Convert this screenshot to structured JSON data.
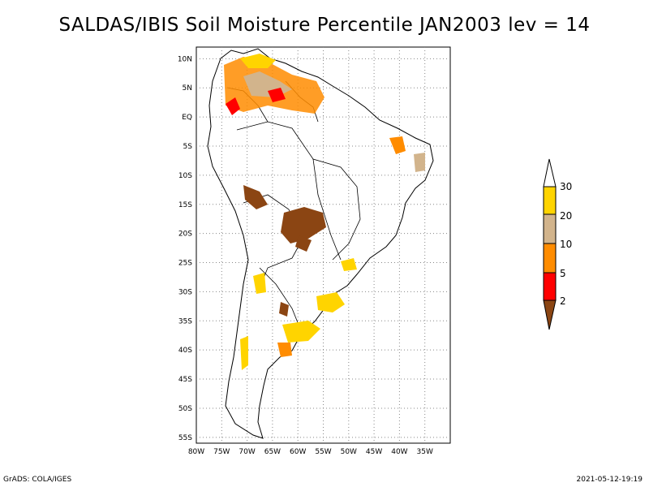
{
  "title": "SALDAS/IBIS Soil Moisture Percentile JAN2003 lev = 14",
  "map": {
    "lon_range": [
      -80,
      -30
    ],
    "lat_range": [
      -56,
      12
    ],
    "x_ticks": [
      "80W",
      "75W",
      "70W",
      "65W",
      "60W",
      "55W",
      "50W",
      "45W",
      "40W",
      "35W"
    ],
    "y_ticks": [
      "10N",
      "5N",
      "EQ",
      "5S",
      "10S",
      "15S",
      "20S",
      "25S",
      "30S",
      "35S",
      "40S",
      "45S",
      "50S",
      "55S"
    ],
    "grid": true,
    "grid_style": "dotted"
  },
  "legend": {
    "labels": [
      "30",
      "20",
      "10",
      "5",
      "2"
    ],
    "colors": {
      "above_30": "#ffffff",
      "20_30": "#ffd400",
      "10_20": "#d2b48c",
      "5_10": "#ff8c00",
      "2_5": "#ff0000",
      "below_2": "#8b4513"
    }
  },
  "footer": {
    "left": "GrADS: COLA/IGES",
    "right": "2021-05-12-19:19"
  }
}
